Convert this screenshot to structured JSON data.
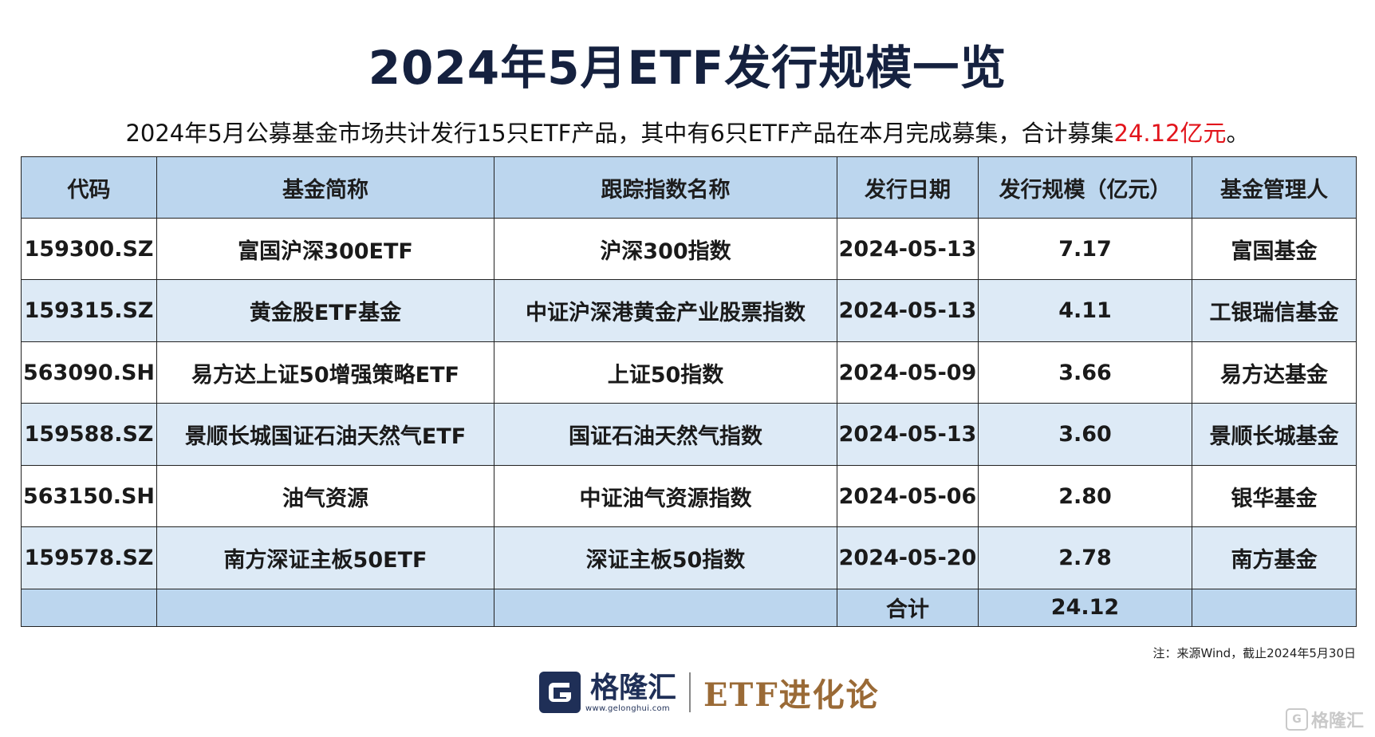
{
  "title": "2024年5月ETF发行规模一览",
  "subtitle": {
    "text": "2024年5月公募基金市场共计发行15只ETF产品，其中有6只ETF产品在本月完成募集，合计募集",
    "highlight": "24.12亿元",
    "tail": "。",
    "highlight_color": "#e2141b"
  },
  "table": {
    "headers": [
      "代码",
      "基金简称",
      "跟踪指数名称",
      "发行日期",
      "发行规模（亿元）",
      "基金管理人"
    ],
    "rows": [
      [
        "159300.SZ",
        "富国沪深300ETF",
        "沪深300指数",
        "2024-05-13",
        "7.17",
        "富国基金"
      ],
      [
        "159315.SZ",
        "黄金股ETF基金",
        "中证沪深港黄金产业股票指数",
        "2024-05-13",
        "4.11",
        "工银瑞信基金"
      ],
      [
        "563090.SH",
        "易方达上证50增强策略ETF",
        "上证50指数",
        "2024-05-09",
        "3.66",
        "易方达基金"
      ],
      [
        "159588.SZ",
        "景顺长城国证石油天然气ETF",
        "国证石油天然气指数",
        "2024-05-13",
        "3.60",
        "景顺长城基金"
      ],
      [
        "563150.SH",
        "油气资源",
        "中证油气资源指数",
        "2024-05-06",
        "2.80",
        "银华基金"
      ],
      [
        "159578.SZ",
        "南方深证主板50ETF",
        "深证主板50指数",
        "2024-05-20",
        "2.78",
        "南方基金"
      ]
    ],
    "total_label": "合计",
    "total_value": "24.12"
  },
  "note": "注：来源Wind，截止2024年5月30日",
  "brand": {
    "name": "格隆汇",
    "url": "www.gelonghui.com",
    "product": "ETF进化论",
    "primary_color": "#1f2f57",
    "product_color": "#9a6a36"
  },
  "watermark": {
    "icon_letter": "G",
    "text": "格隆汇"
  },
  "colors": {
    "header_bg": "#bcd6ee",
    "stripe_bg": "#ddeaf6",
    "title": "#15213f"
  }
}
